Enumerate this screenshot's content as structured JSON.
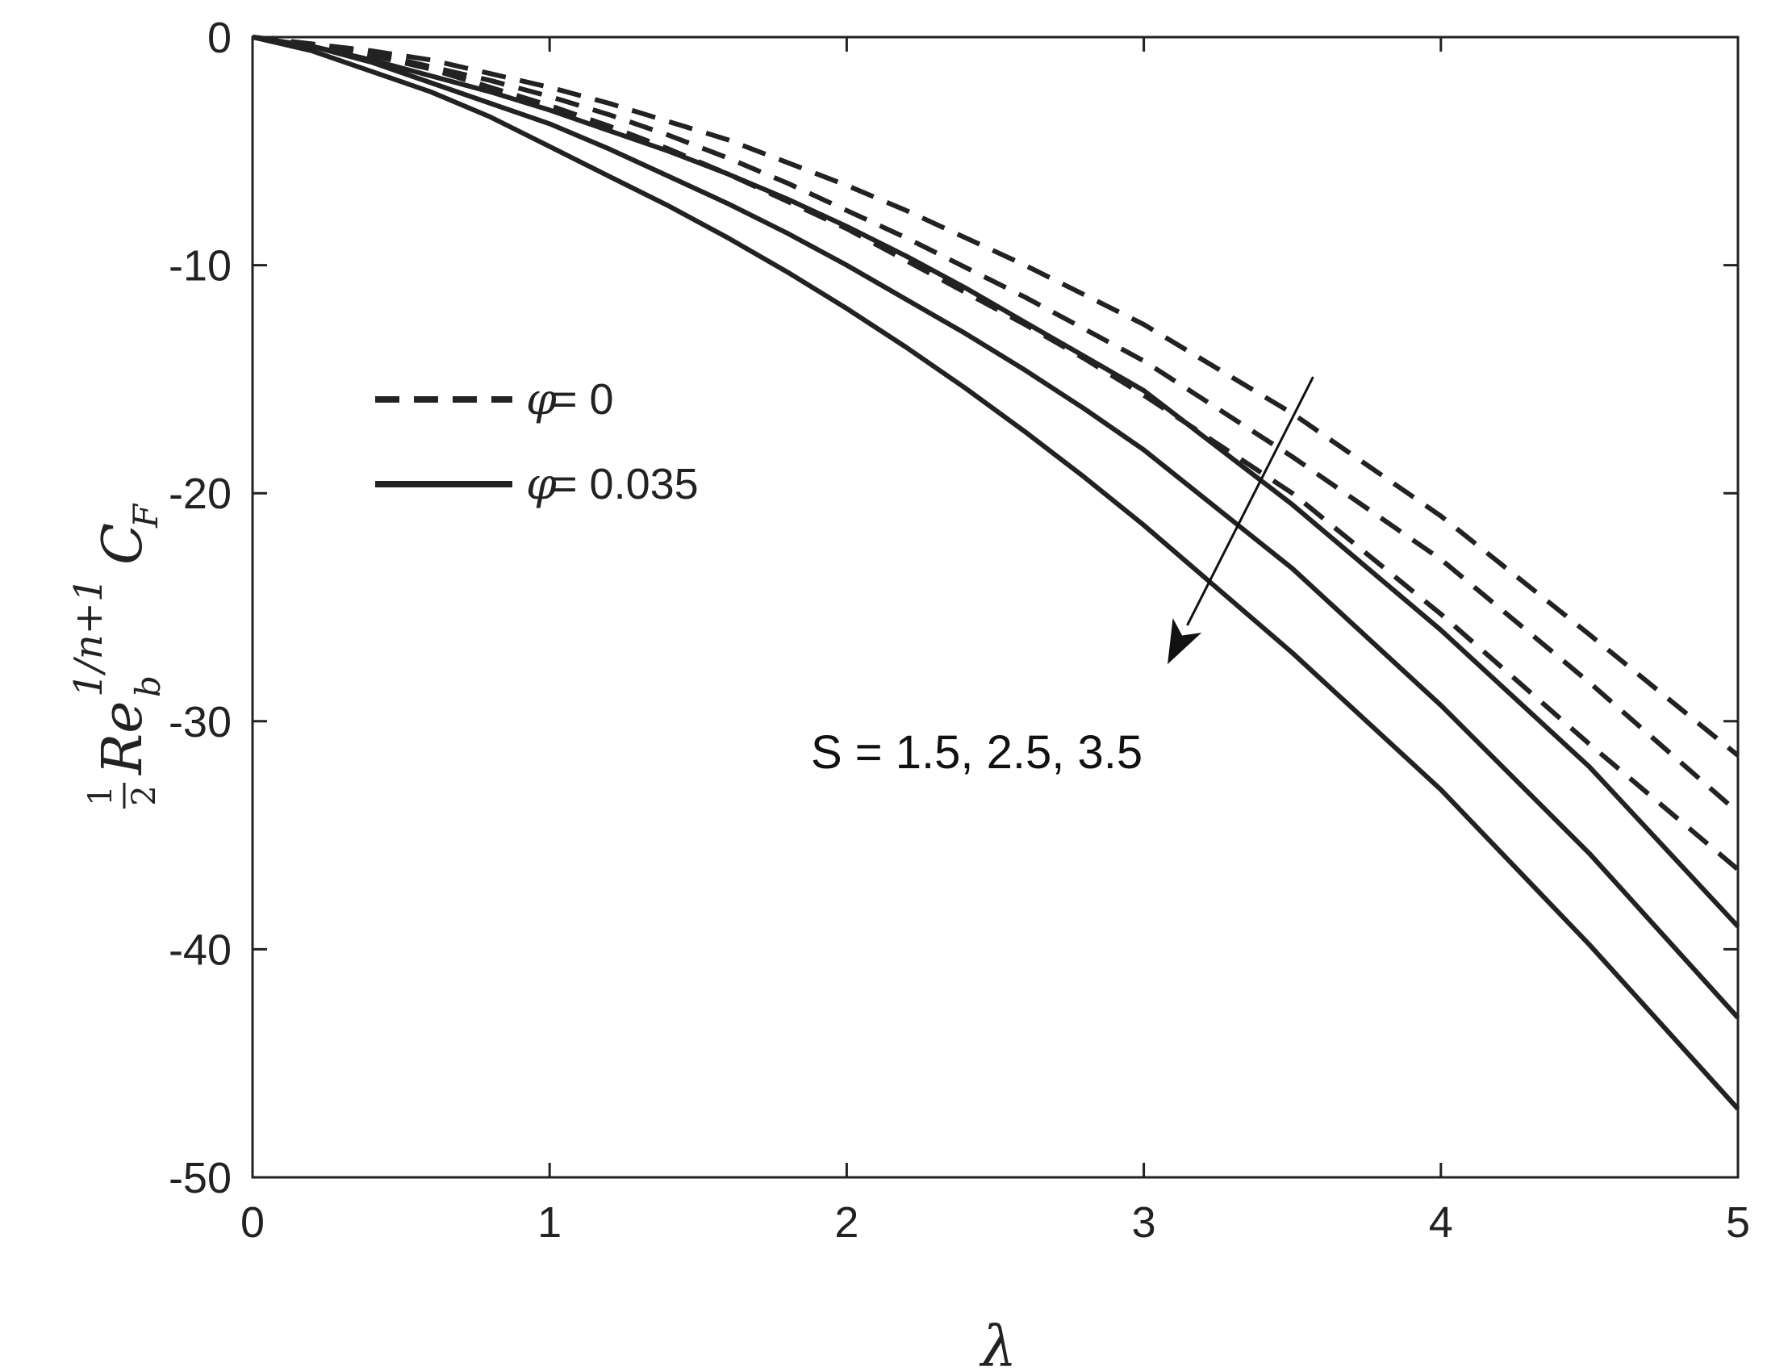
{
  "chart_data": {
    "type": "line",
    "xlabel": "λ",
    "ylabel_parts": {
      "fraction_num": "1",
      "fraction_den": "2",
      "base": "Re",
      "subscript": "b",
      "exponent": "1/n+1",
      "tail": "C",
      "tail_subscript": "F"
    },
    "xlim": [
      0,
      5
    ],
    "ylim": [
      -50,
      0
    ],
    "xticks": [
      0,
      1,
      2,
      3,
      4,
      5
    ],
    "xtick_labels": [
      "0",
      "1",
      "2",
      "3",
      "4",
      "5"
    ],
    "yticks": [
      0,
      -10,
      -20,
      -30,
      -40,
      -50
    ],
    "ytick_labels": [
      "0",
      "-10",
      "-20",
      "-30",
      "-40",
      "-50"
    ],
    "grid": false,
    "legend": {
      "placement": "upper-left",
      "entries": [
        {
          "symbol": "φ",
          "text": " = 0",
          "style": "dashed"
        },
        {
          "symbol": "φ",
          "text": " = 0.035",
          "style": "solid"
        }
      ]
    },
    "annotation": {
      "text": "S = 1.5, 2.5, 3.5",
      "arrow_from": [
        3.57,
        -14.9
      ],
      "arrow_to": [
        3.08,
        -27.5
      ]
    },
    "x": [
      0,
      0.2,
      0.4,
      0.6,
      0.8,
      1.0,
      1.2,
      1.4,
      1.6,
      1.8,
      2.0,
      2.2,
      2.4,
      2.6,
      2.8,
      3.0,
      3.5,
      4.0,
      4.5,
      5.0
    ],
    "series": [
      {
        "style": "dashed",
        "color": "#222222",
        "values": [
          0,
          -0.3,
          -0.8,
          -1.4,
          -2.2,
          -3.0,
          -3.9,
          -4.9,
          -6.0,
          -7.2,
          -8.4,
          -9.8,
          -11.2,
          -12.6,
          -14.1,
          -15.7,
          -20.0,
          -25.3,
          -31.0,
          -36.5
        ]
      },
      {
        "style": "dashed",
        "color": "#222222",
        "values": [
          0,
          -0.3,
          -0.7,
          -1.3,
          -1.9,
          -2.6,
          -3.4,
          -4.3,
          -5.3,
          -6.4,
          -7.6,
          -8.8,
          -10.1,
          -11.4,
          -12.8,
          -14.2,
          -18.4,
          -22.9,
          -28.3,
          -34.0
        ]
      },
      {
        "style": "dashed",
        "color": "#222222",
        "values": [
          0,
          -0.3,
          -0.6,
          -1.0,
          -1.6,
          -2.2,
          -2.9,
          -3.7,
          -4.5,
          -5.5,
          -6.5,
          -7.6,
          -8.8,
          -10.0,
          -11.3,
          -12.6,
          -16.5,
          -21.0,
          -26.2,
          -31.5
        ]
      },
      {
        "style": "solid",
        "color": "#222222",
        "values": [
          0,
          -0.4,
          -1.1,
          -2.0,
          -2.9,
          -3.8,
          -4.9,
          -6.1,
          -7.3,
          -8.6,
          -10.0,
          -11.5,
          -13.0,
          -14.6,
          -16.3,
          -18.1,
          -23.3,
          -29.3,
          -35.8,
          -43.0
        ]
      },
      {
        "style": "solid",
        "color": "#222222",
        "values": [
          0,
          -0.4,
          -1.0,
          -1.7,
          -2.4,
          -3.2,
          -4.1,
          -5.0,
          -6.0,
          -7.1,
          -8.3,
          -9.6,
          -11.0,
          -12.5,
          -14.0,
          -15.5,
          -20.5,
          -26.0,
          -32.0,
          -39.0
        ]
      },
      {
        "style": "solid",
        "color": "#222222",
        "values": [
          0,
          -0.6,
          -1.5,
          -2.4,
          -3.5,
          -4.8,
          -6.1,
          -7.4,
          -8.8,
          -10.3,
          -11.9,
          -13.6,
          -15.4,
          -17.3,
          -19.3,
          -21.4,
          -27.0,
          -33.0,
          -39.8,
          -47.0
        ]
      }
    ]
  }
}
